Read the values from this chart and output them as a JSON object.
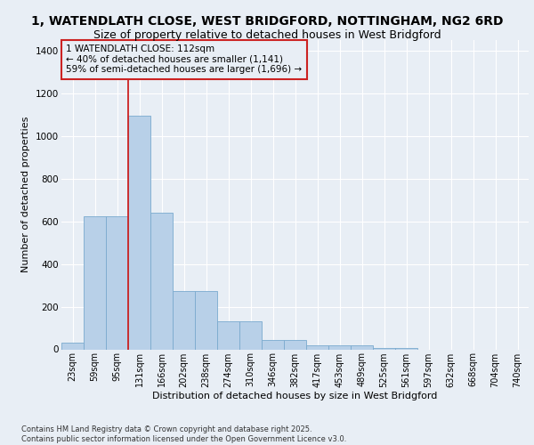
{
  "title_line1": "1, WATENDLATH CLOSE, WEST BRIDGFORD, NOTTINGHAM, NG2 6RD",
  "title_line2": "Size of property relative to detached houses in West Bridgford",
  "xlabel": "Distribution of detached houses by size in West Bridgford",
  "ylabel": "Number of detached properties",
  "categories": [
    "23sqm",
    "59sqm",
    "95sqm",
    "131sqm",
    "166sqm",
    "202sqm",
    "238sqm",
    "274sqm",
    "310sqm",
    "346sqm",
    "382sqm",
    "417sqm",
    "453sqm",
    "489sqm",
    "525sqm",
    "561sqm",
    "597sqm",
    "632sqm",
    "668sqm",
    "704sqm",
    "740sqm"
  ],
  "values": [
    30,
    625,
    625,
    1095,
    640,
    275,
    275,
    130,
    130,
    45,
    45,
    20,
    20,
    20,
    5,
    5,
    0,
    0,
    0,
    0,
    0
  ],
  "bar_color": "#b8d0e8",
  "bar_edge_color": "#7aaace",
  "vline_index": 2.5,
  "vline_color": "#cc2222",
  "annotation_text": "1 WATENDLATH CLOSE: 112sqm\n← 40% of detached houses are smaller (1,141)\n59% of semi-detached houses are larger (1,696) →",
  "ylim": [
    0,
    1450
  ],
  "yticks": [
    0,
    200,
    400,
    600,
    800,
    1000,
    1200,
    1400
  ],
  "footer_text": "Contains HM Land Registry data © Crown copyright and database right 2025.\nContains public sector information licensed under the Open Government Licence v3.0.",
  "bg_color": "#e8eef5",
  "grid_color": "#ffffff"
}
